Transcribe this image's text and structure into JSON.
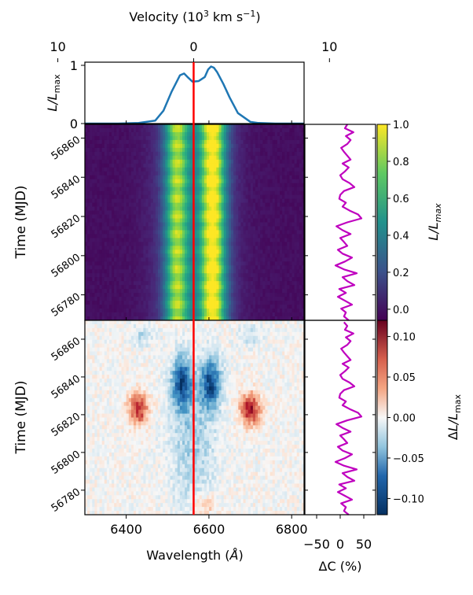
{
  "chart_data": [
    {
      "id": "profile",
      "type": "line",
      "ylabel_italic": "L/L",
      "ylabel_sub": "max",
      "top_axis": {
        "label_prefix": "Velocity (10",
        "label_sup1": "3",
        "label_mid": " km s",
        "label_sup2": "−1",
        "label_suffix": ")",
        "ticks": [
          "10",
          "0",
          "10"
        ],
        "tick_values": [
          -15,
          0,
          15
        ]
      },
      "yticks": [
        "0",
        "1"
      ],
      "ylim": [
        0,
        1
      ],
      "color": "#1f77b4",
      "x": [
        6300,
        6380,
        6430,
        6470,
        6490,
        6510,
        6530,
        6540,
        6548,
        6560,
        6575,
        6590,
        6598,
        6605,
        6612,
        6620,
        6635,
        6650,
        6670,
        6700,
        6720,
        6760,
        6830
      ],
      "y": [
        0.0,
        0.0,
        0.01,
        0.05,
        0.22,
        0.55,
        0.83,
        0.86,
        0.8,
        0.72,
        0.73,
        0.8,
        0.93,
        0.98,
        0.96,
        0.88,
        0.68,
        0.45,
        0.18,
        0.03,
        0.01,
        0.0,
        0.0
      ]
    },
    {
      "id": "luminosity-map",
      "type": "heatmap",
      "ylabel": "Time (MJD)",
      "yticks": [
        "56860",
        "56840",
        "56820",
        "56800",
        "56780"
      ],
      "ytick_values": [
        56860,
        56840,
        56820,
        56800,
        56780
      ],
      "ylim": [
        56767,
        56867
      ],
      "colormap": "viridis"
    },
    {
      "id": "residual-map",
      "type": "heatmap",
      "ylabel": "Time (MJD)",
      "yticks": [
        "56860",
        "56840",
        "56820",
        "56800",
        "56780"
      ],
      "ytick_values": [
        56860,
        56840,
        56820,
        56800,
        56780
      ],
      "ylim": [
        56767,
        56870
      ],
      "xlabel_prefix": "Wavelength (",
      "xlabel_unit": "Å",
      "xlabel_suffix": ")",
      "xticks": [
        "6400",
        "6600",
        "6800"
      ],
      "xtick_values": [
        6400,
        6600,
        6800
      ],
      "xlim": [
        6300,
        6830
      ],
      "colormap": "RdBu_r"
    },
    {
      "id": "colorbar-luminosity",
      "type": "colorbar",
      "label_italic": "L/L",
      "label_sub": "max",
      "ticks": [
        "1.0",
        "0.8",
        "0.6",
        "0.4",
        "0.2",
        "0.0"
      ],
      "tick_values": [
        1.0,
        0.8,
        0.6,
        0.4,
        0.2,
        0.0
      ],
      "range": [
        -0.06,
        1.0
      ]
    },
    {
      "id": "colorbar-residual",
      "type": "colorbar",
      "label_prefix": "Δ",
      "label_italic": "L/L",
      "label_sub": "max",
      "ticks": [
        "0.10",
        "0.05",
        "0.00",
        "−0.05",
        "−0.10"
      ],
      "tick_values": [
        0.1,
        0.05,
        0.0,
        -0.05,
        -0.1
      ],
      "range": [
        -0.12,
        0.12
      ]
    },
    {
      "id": "delta-c-upper",
      "type": "line",
      "color": "#bf00bf",
      "ylim": [
        56767,
        56867
      ],
      "t": [
        56767,
        56769,
        56771,
        56773,
        56775,
        56777,
        56779,
        56781,
        56783,
        56785,
        56787,
        56789,
        56791,
        56793,
        56795,
        56797,
        56799,
        56801,
        56803,
        56805,
        56807,
        56809,
        56811,
        56813,
        56815,
        56817,
        56819,
        56821,
        56823,
        56825,
        56827,
        56829,
        56831,
        56833,
        56835,
        56837,
        56839,
        56841,
        56843,
        56845,
        56847,
        56849,
        56851,
        56853,
        56855,
        56857,
        56859,
        56861,
        56863,
        56865,
        56867
      ],
      "dc": [
        18,
        8,
        12,
        2,
        25,
        10,
        -5,
        12,
        -2,
        30,
        15,
        5,
        35,
        8,
        -10,
        10,
        25,
        5,
        -5,
        15,
        8,
        0,
        22,
        5,
        -8,
        15,
        45,
        38,
        20,
        5,
        12,
        -2,
        0,
        8,
        30,
        20,
        5,
        0,
        10,
        18,
        5,
        22,
        15,
        8,
        2,
        15,
        22,
        12,
        28,
        10,
        15
      ]
    },
    {
      "id": "delta-c-lower",
      "type": "line",
      "color": "#bf00bf",
      "xlabel": "ΔC (%)",
      "xticks": [
        "−50",
        "0",
        "50"
      ],
      "xtick_values": [
        -50,
        0,
        50
      ],
      "xlim": [
        -75,
        75
      ],
      "ylim": [
        56767,
        56870
      ],
      "t": [
        56767,
        56769,
        56771,
        56773,
        56775,
        56777,
        56779,
        56781,
        56783,
        56785,
        56787,
        56789,
        56791,
        56793,
        56795,
        56797,
        56799,
        56801,
        56803,
        56805,
        56807,
        56809,
        56811,
        56813,
        56815,
        56817,
        56819,
        56821,
        56823,
        56825,
        56827,
        56829,
        56831,
        56833,
        56835,
        56837,
        56839,
        56841,
        56843,
        56845,
        56847,
        56849,
        56851,
        56853,
        56855,
        56857,
        56859,
        56861,
        56863,
        56865,
        56867,
        56869
      ],
      "dc": [
        18,
        8,
        12,
        2,
        25,
        10,
        -5,
        12,
        -2,
        30,
        15,
        5,
        35,
        8,
        -10,
        10,
        25,
        5,
        -5,
        15,
        8,
        0,
        22,
        5,
        -8,
        15,
        45,
        38,
        20,
        5,
        12,
        -2,
        0,
        8,
        30,
        20,
        5,
        0,
        10,
        18,
        5,
        22,
        15,
        8,
        2,
        15,
        22,
        12,
        28,
        10,
        15,
        8
      ]
    }
  ],
  "rest_wavelength": 6563,
  "marker_color": "#ff0000",
  "features": {
    "lum_peaks": [
      {
        "center": 6522,
        "amp": 0.74,
        "width": 20
      },
      {
        "center": 6610,
        "amp": 0.95,
        "width": 22
      },
      {
        "center": 6565,
        "amp": 0.3,
        "width": 60
      }
    ],
    "residual_blobs": [
      {
        "x": 6430,
        "t": 56823,
        "amp": 0.09,
        "sx": 18,
        "st": 6
      },
      {
        "x": 6700,
        "t": 56823,
        "amp": 0.1,
        "sx": 18,
        "st": 6
      },
      {
        "x": 6535,
        "t": 56837,
        "amp": -0.1,
        "sx": 18,
        "st": 10
      },
      {
        "x": 6605,
        "t": 56837,
        "amp": -0.1,
        "sx": 18,
        "st": 10
      },
      {
        "x": 6560,
        "t": 56805,
        "amp": -0.04,
        "sx": 40,
        "st": 25
      },
      {
        "x": 6440,
        "t": 56862,
        "amp": -0.03,
        "sx": 20,
        "st": 4
      },
      {
        "x": 6700,
        "t": 56862,
        "amp": -0.03,
        "sx": 20,
        "st": 4
      },
      {
        "x": 6590,
        "t": 56772,
        "amp": 0.04,
        "sx": 20,
        "st": 4
      }
    ]
  }
}
